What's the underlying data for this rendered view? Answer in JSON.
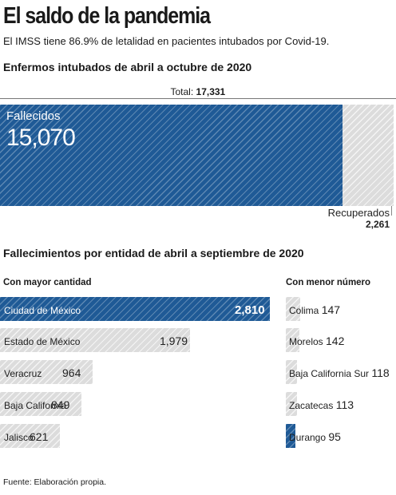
{
  "header": {
    "title": "El saldo de la pandemia",
    "subtitle": "El IMSS tiene 86.9% de letalidad en pacientes intubados por Covid-19."
  },
  "colors": {
    "accent": "#1f5a96",
    "muted": "#dcdcdc"
  },
  "chart_data": [
    {
      "type": "bar",
      "title": "Enfermos intubados de abril a octubre de 2020",
      "total_label": "Total:",
      "total_value": "17,331",
      "total": 17331,
      "series": [
        {
          "name": "Fallecidos",
          "value": 15070,
          "value_label": "15,070",
          "color": "#1f5a96"
        },
        {
          "name": "Recuperados",
          "value": 2261,
          "value_label": "2,261",
          "color": "#dcdcdc"
        }
      ]
    },
    {
      "type": "bar",
      "title": "Fallecimientos por entidad de abril a septiembre de 2020",
      "xlim": [
        0,
        2810
      ],
      "groups": [
        {
          "label": "Con mayor cantidad",
          "categories": [
            "Ciudad de México",
            "Estado de México",
            "Veracruz",
            "Baja California",
            "Jalisco"
          ],
          "values": [
            2810,
            1979,
            964,
            849,
            621
          ],
          "value_labels": [
            "2,810",
            "1,979",
            "964",
            "849",
            "621"
          ]
        },
        {
          "label": "Con menor número",
          "categories": [
            "Colima",
            "Morelos",
            "Baja California Sur",
            "Zacatecas",
            "Durango"
          ],
          "values": [
            147,
            142,
            118,
            113,
            95
          ],
          "value_labels": [
            "147",
            "142",
            "118",
            "113",
            "95"
          ]
        }
      ]
    }
  ],
  "footer": {
    "source": "Fuente: Elaboración propia."
  }
}
